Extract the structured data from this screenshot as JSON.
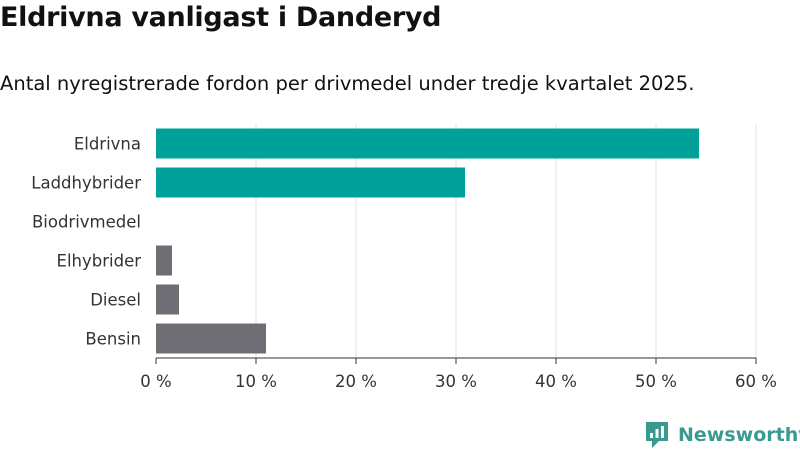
{
  "title": "Eldrivna vanligast i Danderyd",
  "subtitle": "Antal nyregistrerade fordon per drivmedel under tredje kvartalet 2025.",
  "brand": {
    "name": "Newsworthy",
    "color": "#3a9a91"
  },
  "colors": {
    "highlight": "#00a19a",
    "other": "#6f6e74",
    "grid": "#e0e0e0",
    "text": "#333333"
  },
  "chart_data": {
    "type": "bar",
    "orientation": "horizontal",
    "categories": [
      "Eldrivna",
      "Laddhybrider",
      "Biodrivmedel",
      "Elhybrider",
      "Diesel",
      "Bensin"
    ],
    "values": [
      54.3,
      30.9,
      0,
      1.6,
      2.3,
      11.0
    ],
    "highlight": [
      true,
      true,
      true,
      false,
      false,
      false
    ],
    "xlim": [
      0,
      60
    ],
    "xticks": [
      0,
      10,
      20,
      30,
      40,
      50,
      60
    ],
    "xtick_labels": [
      "0 %",
      "10 %",
      "20 %",
      "30 %",
      "40 %",
      "50 %",
      "60 %"
    ],
    "grid": true
  }
}
